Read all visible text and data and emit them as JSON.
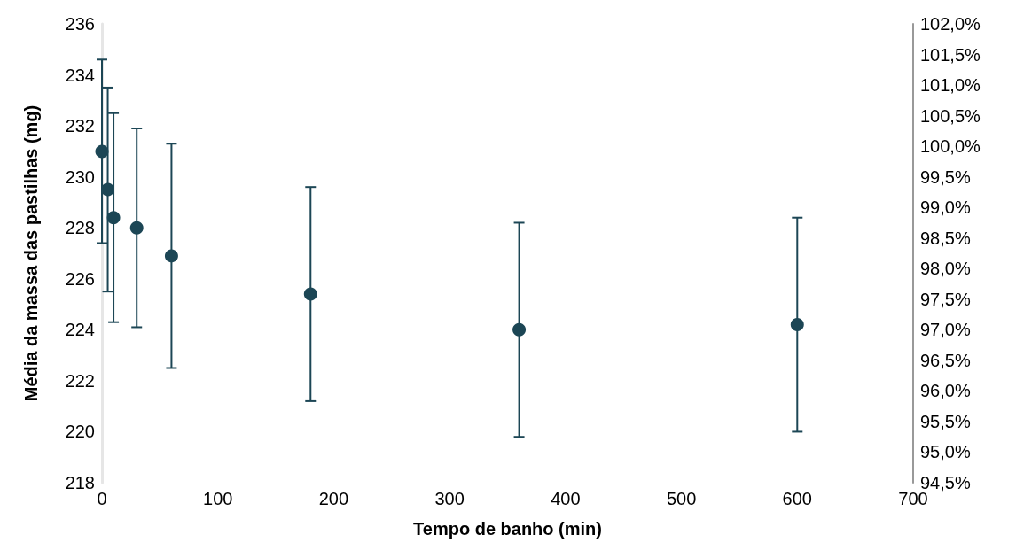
{
  "chart_data": {
    "type": "scatter",
    "xlabel": "Tempo de banho (min)",
    "ylabel": "Média da massa das pastilhas (mg)",
    "x": [
      0,
      5,
      10,
      30,
      60,
      180,
      360,
      600
    ],
    "values": [
      231.0,
      229.5,
      228.4,
      228.0,
      226.9,
      225.4,
      224.0,
      224.2
    ],
    "errors": [
      3.6,
      4.0,
      4.1,
      3.9,
      4.4,
      4.2,
      4.2,
      4.2
    ],
    "color": "#1c4655",
    "marker": "circle",
    "grid": false,
    "xlim": [
      0,
      700
    ],
    "xticks": [
      0,
      100,
      200,
      300,
      400,
      500,
      600,
      700
    ],
    "ylim": [
      218,
      236
    ],
    "yticks": [
      218,
      220,
      222,
      224,
      226,
      228,
      230,
      232,
      234,
      236
    ],
    "y2lim": [
      94.5,
      102
    ],
    "y2ticks": [
      {
        "value": 94.5,
        "label": "94,5%"
      },
      {
        "value": 95,
        "label": "95,0%"
      },
      {
        "value": 95.5,
        "label": "95,5%"
      },
      {
        "value": 96,
        "label": "96,0%"
      },
      {
        "value": 96.5,
        "label": "96,5%"
      },
      {
        "value": 97,
        "label": "97,0%"
      },
      {
        "value": 97.5,
        "label": "97,5%"
      },
      {
        "value": 98,
        "label": "98,0%"
      },
      {
        "value": 98.5,
        "label": "98,5%"
      },
      {
        "value": 99,
        "label": "99,0%"
      },
      {
        "value": 99.5,
        "label": "99,5%"
      },
      {
        "value": 100,
        "label": "100,0%"
      },
      {
        "value": 100.5,
        "label": "100,5%"
      },
      {
        "value": 101,
        "label": "101,0%"
      },
      {
        "value": 101.5,
        "label": "101,5%"
      },
      {
        "value": 102,
        "label": "102,0%"
      }
    ]
  }
}
